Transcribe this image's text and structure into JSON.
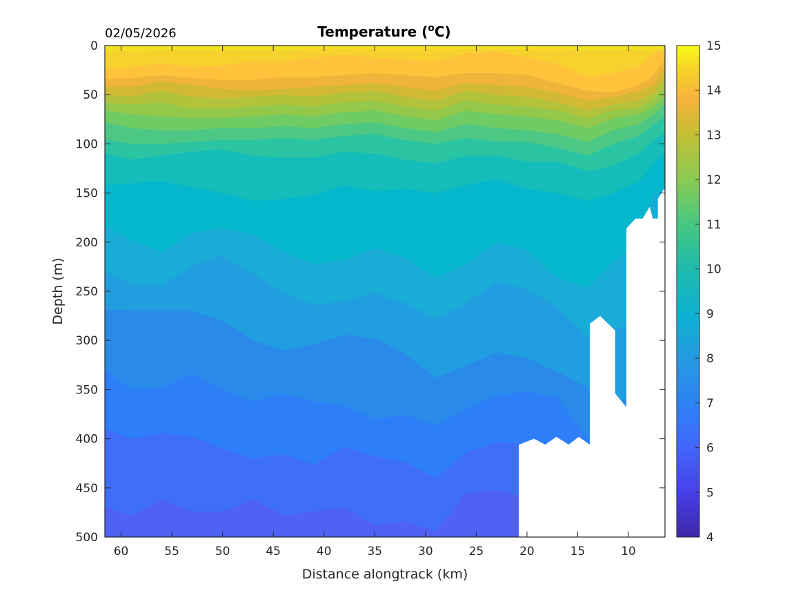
{
  "header": {
    "date": "02/05/2026",
    "title_prefix": "Temperature (",
    "title_degree": "o",
    "title_suffix": "C)"
  },
  "chart_data": {
    "type": "heatmap",
    "subtype": "filled-contour section",
    "title": "Temperature (°C)",
    "date_label": "02/05/2026",
    "xlabel": "Distance alongtrack (km)",
    "ylabel": "Depth (m)",
    "xlim": [
      61.6,
      6.4
    ],
    "x_reversed": true,
    "ylim": [
      0,
      500
    ],
    "y_reversed": true,
    "xticks": [
      60,
      55,
      50,
      45,
      40,
      35,
      30,
      25,
      20,
      15,
      10
    ],
    "yticks": [
      0,
      50,
      100,
      150,
      200,
      250,
      300,
      350,
      400,
      450,
      500
    ],
    "colorbar": {
      "min": 4,
      "max": 15,
      "ticks": [
        4,
        5,
        6,
        7,
        8,
        9,
        10,
        11,
        12,
        13,
        14,
        15
      ],
      "colormap": "parula"
    },
    "grid": false,
    "x": [
      61.6,
      59,
      56,
      53,
      50,
      47,
      44,
      41,
      38,
      35,
      32,
      29,
      26,
      23,
      20,
      17,
      14,
      11.5,
      9,
      7.5,
      6.4
    ],
    "isotherm_depths_m": [
      {
        "temp": 14.5,
        "depths": [
          5,
          6,
          5,
          5,
          5,
          5,
          5,
          3,
          3,
          3,
          3,
          3,
          3,
          3,
          3,
          3,
          5,
          5,
          5,
          4,
          4
        ]
      },
      {
        "temp": 14.0,
        "depths": [
          24,
          22,
          18,
          22,
          20,
          16,
          16,
          12,
          10,
          12,
          14,
          16,
          8,
          6,
          12,
          18,
          32,
          28,
          22,
          8,
          5
        ]
      },
      {
        "temp": 13.5,
        "depths": [
          34,
          33,
          30,
          33,
          35,
          35,
          32,
          32,
          30,
          28,
          30,
          32,
          28,
          28,
          30,
          38,
          46,
          48,
          40,
          30,
          14
        ]
      },
      {
        "temp": 13.0,
        "depths": [
          42,
          42,
          36,
          40,
          44,
          45,
          44,
          42,
          40,
          38,
          42,
          46,
          38,
          40,
          42,
          48,
          56,
          52,
          46,
          40,
          22
        ]
      },
      {
        "temp": 12.5,
        "depths": [
          50,
          52,
          46,
          52,
          54,
          52,
          50,
          52,
          48,
          46,
          52,
          56,
          46,
          50,
          52,
          58,
          66,
          60,
          56,
          48,
          32
        ]
      },
      {
        "temp": 12.0,
        "depths": [
          58,
          60,
          58,
          64,
          64,
          62,
          60,
          62,
          58,
          56,
          62,
          66,
          56,
          60,
          62,
          66,
          74,
          66,
          64,
          54,
          42
        ]
      },
      {
        "temp": 11.5,
        "depths": [
          66,
          70,
          72,
          74,
          74,
          72,
          70,
          72,
          68,
          66,
          72,
          76,
          66,
          70,
          72,
          76,
          84,
          74,
          70,
          62,
          52
        ]
      },
      {
        "temp": 11.0,
        "depths": [
          78,
          84,
          86,
          86,
          84,
          84,
          82,
          84,
          80,
          78,
          84,
          88,
          80,
          84,
          86,
          90,
          98,
          86,
          80,
          70,
          60
        ]
      },
      {
        "temp": 10.5,
        "depths": [
          96,
          100,
          100,
          98,
          96,
          96,
          94,
          96,
          92,
          90,
          96,
          100,
          94,
          98,
          98,
          104,
          112,
          100,
          92,
          80,
          72
        ]
      },
      {
        "temp": 10.0,
        "depths": [
          110,
          116,
          112,
          108,
          106,
          112,
          114,
          114,
          108,
          110,
          116,
          120,
          112,
          112,
          118,
          118,
          128,
          122,
          110,
          96,
          88
        ]
      },
      {
        "temp": 9.5,
        "depths": [
          142,
          140,
          138,
          144,
          150,
          158,
          156,
          152,
          142,
          148,
          146,
          150,
          142,
          136,
          146,
          150,
          158,
          150,
          138,
          120,
          108
        ]
      },
      {
        "temp": 9.0,
        "depths": [
          184,
          198,
          210,
          190,
          186,
          192,
          210,
          222,
          218,
          206,
          216,
          236,
          222,
          200,
          208,
          236,
          246,
          220,
          200,
          150,
          150
        ]
      },
      {
        "temp": 8.5,
        "depths": [
          230,
          242,
          244,
          224,
          214,
          232,
          252,
          264,
          260,
          252,
          262,
          278,
          262,
          240,
          248,
          266,
          296,
          290,
          280,
          250,
          240
        ]
      },
      {
        "temp": 8.0,
        "depths": [
          268,
          270,
          270,
          270,
          280,
          300,
          310,
          304,
          294,
          298,
          314,
          338,
          326,
          312,
          318,
          332,
          348,
          360,
          360,
          360,
          360
        ]
      },
      {
        "temp": 7.5,
        "depths": [
          330,
          350,
          348,
          334,
          350,
          362,
          354,
          362,
          366,
          380,
          376,
          386,
          370,
          356,
          352,
          358,
          400,
          400,
          400,
          400,
          400
        ]
      },
      {
        "temp": 7.0,
        "depths": [
          390,
          400,
          394,
          398,
          410,
          420,
          416,
          426,
          408,
          418,
          424,
          440,
          414,
          404,
          405,
          405,
          405,
          405,
          405,
          405,
          405
        ]
      },
      {
        "temp": 6.5,
        "depths": [
          470,
          478,
          462,
          474,
          474,
          462,
          478,
          474,
          470,
          488,
          484,
          494,
          456,
          452,
          460,
          460,
          460,
          460,
          460,
          460,
          460
        ]
      }
    ],
    "no_data_mask": {
      "description": "white region below seafloor at right side of section",
      "outline_km_m": [
        [
          20.8,
          500
        ],
        [
          20.8,
          406
        ],
        [
          19.3,
          400
        ],
        [
          18.2,
          406
        ],
        [
          17.1,
          398
        ],
        [
          15.9,
          406
        ],
        [
          14.9,
          398
        ],
        [
          13.8,
          406
        ],
        [
          13.8,
          283
        ],
        [
          12.8,
          275
        ],
        [
          11.3,
          290
        ],
        [
          11.3,
          354
        ],
        [
          10.2,
          368
        ],
        [
          10.2,
          186
        ],
        [
          9.3,
          176
        ],
        [
          8.6,
          176
        ],
        [
          7.9,
          164
        ],
        [
          7.6,
          176
        ],
        [
          7.1,
          176
        ],
        [
          7.1,
          156
        ],
        [
          6.5,
          146
        ],
        [
          6.4,
          148
        ],
        [
          6.4,
          500
        ]
      ]
    },
    "band_colors": [
      "#4f62f5",
      "#3f6ef8",
      "#2d7ff8",
      "#2a8ae9",
      "#219ee0",
      "#18acd6",
      "#05b7cc",
      "#14bdb9",
      "#2bc4a2",
      "#4cc884",
      "#6fcb63",
      "#93c84a",
      "#b3c23b",
      "#d2b935",
      "#f1b43b",
      "#fec33a",
      "#f7d12e",
      "#f2e123"
    ]
  }
}
